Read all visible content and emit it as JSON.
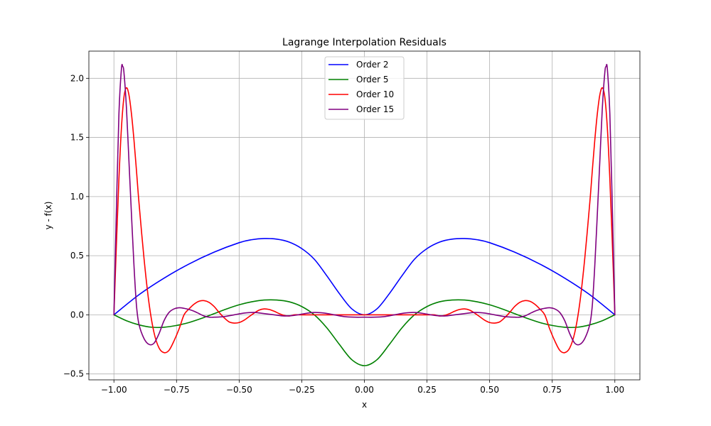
{
  "chart_data": {
    "type": "line",
    "title": "Lagrange Interpolation Residuals",
    "xlabel": "x",
    "ylabel": "y - f(x)",
    "xlim": [
      -1.1,
      1.1
    ],
    "ylim": [
      -0.55,
      2.23
    ],
    "xticks": [
      -1.0,
      -0.75,
      -0.5,
      -0.25,
      0.0,
      0.25,
      0.5,
      0.75,
      1.0
    ],
    "xtick_labels": [
      "−1.00",
      "−0.75",
      "−0.50",
      "−0.25",
      "0.00",
      "0.25",
      "0.50",
      "0.75",
      "1.00"
    ],
    "yticks": [
      -0.5,
      0.0,
      0.5,
      1.0,
      1.5,
      2.0
    ],
    "ytick_labels": [
      "−0.5",
      "0.0",
      "0.5",
      "1.0",
      "1.5",
      "2.0"
    ],
    "grid": true,
    "legend_position": "upper center",
    "series": [
      {
        "name": "Order 2",
        "color": "#0000ff",
        "x": [
          -1.0,
          -0.9,
          -0.8,
          -0.7,
          -0.6,
          -0.5,
          -0.45,
          -0.4,
          -0.35,
          -0.3,
          -0.25,
          -0.2,
          -0.15,
          -0.1,
          -0.05,
          0.0,
          0.05,
          0.1,
          0.15,
          0.2,
          0.25,
          0.3,
          0.35,
          0.4,
          0.45,
          0.5,
          0.6,
          0.7,
          0.8,
          0.9,
          1.0
        ],
        "y": [
          0.0,
          0.17,
          0.31,
          0.43,
          0.53,
          0.61,
          0.635,
          0.645,
          0.64,
          0.615,
          0.56,
          0.47,
          0.33,
          0.18,
          0.05,
          0.0,
          0.05,
          0.18,
          0.33,
          0.47,
          0.56,
          0.615,
          0.64,
          0.645,
          0.635,
          0.61,
          0.53,
          0.43,
          0.31,
          0.17,
          0.0
        ]
      },
      {
        "name": "Order 5",
        "color": "#008000",
        "x": [
          -1.0,
          -0.95,
          -0.9,
          -0.85,
          -0.8,
          -0.75,
          -0.7,
          -0.65,
          -0.6,
          -0.55,
          -0.5,
          -0.45,
          -0.4,
          -0.35,
          -0.3,
          -0.25,
          -0.2,
          -0.15,
          -0.1,
          -0.05,
          0.0,
          0.05,
          0.1,
          0.15,
          0.2,
          0.25,
          0.3,
          0.35,
          0.4,
          0.45,
          0.5,
          0.55,
          0.6,
          0.65,
          0.7,
          0.75,
          0.8,
          0.85,
          0.9,
          0.95,
          1.0
        ],
        "y": [
          0.0,
          -0.05,
          -0.085,
          -0.105,
          -0.105,
          -0.09,
          -0.065,
          -0.03,
          0.01,
          0.05,
          0.085,
          0.11,
          0.125,
          0.125,
          0.11,
          0.07,
          0.0,
          -0.11,
          -0.25,
          -0.38,
          -0.43,
          -0.38,
          -0.25,
          -0.11,
          0.0,
          0.07,
          0.11,
          0.125,
          0.125,
          0.11,
          0.085,
          0.05,
          0.01,
          -0.03,
          -0.065,
          -0.09,
          -0.105,
          -0.105,
          -0.085,
          -0.05,
          0.0
        ]
      },
      {
        "name": "Order 10",
        "color": "#ff0000",
        "x": [
          -1.0,
          -0.99,
          -0.98,
          -0.97,
          -0.96,
          -0.95,
          -0.94,
          -0.93,
          -0.92,
          -0.91,
          -0.9,
          -0.88,
          -0.86,
          -0.84,
          -0.82,
          -0.8,
          -0.78,
          -0.76,
          -0.74,
          -0.72,
          -0.7,
          -0.68,
          -0.66,
          -0.64,
          -0.62,
          -0.6,
          -0.58,
          -0.56,
          -0.54,
          -0.52,
          -0.5,
          -0.48,
          -0.46,
          -0.44,
          -0.42,
          -0.4,
          -0.38,
          -0.36,
          -0.34,
          -0.32,
          -0.3,
          -0.28,
          -0.26,
          -0.24,
          -0.22,
          -0.2,
          -0.18,
          -0.16,
          -0.14,
          -0.12,
          -0.1,
          -0.08,
          -0.06,
          -0.04,
          -0.02,
          0.0,
          0.02,
          0.04,
          0.06,
          0.08,
          0.1,
          0.12,
          0.14,
          0.16,
          0.18,
          0.2,
          0.22,
          0.24,
          0.26,
          0.28,
          0.3,
          0.32,
          0.34,
          0.36,
          0.38,
          0.4,
          0.42,
          0.44,
          0.46,
          0.48,
          0.5,
          0.52,
          0.54,
          0.56,
          0.58,
          0.6,
          0.62,
          0.64,
          0.66,
          0.68,
          0.7,
          0.72,
          0.74,
          0.76,
          0.78,
          0.8,
          0.82,
          0.84,
          0.86,
          0.88,
          0.9,
          0.91,
          0.92,
          0.93,
          0.94,
          0.95,
          0.96,
          0.97,
          0.98,
          0.99,
          1.0
        ],
        "y": [
          0.0,
          0.6,
          1.15,
          1.58,
          1.84,
          1.92,
          1.86,
          1.7,
          1.48,
          1.22,
          0.95,
          0.48,
          0.1,
          -0.15,
          -0.28,
          -0.32,
          -0.3,
          -0.22,
          -0.12,
          0.0,
          0.05,
          0.09,
          0.115,
          0.12,
          0.105,
          0.07,
          0.02,
          -0.025,
          -0.06,
          -0.07,
          -0.065,
          -0.045,
          -0.015,
          0.015,
          0.04,
          0.05,
          0.045,
          0.03,
          0.01,
          -0.005,
          -0.01,
          0.0,
          0.0,
          0.0,
          0.0,
          0.0,
          0.0,
          0.0,
          0.0,
          0.0,
          0.0,
          0.0,
          0.0,
          0.0,
          0.0,
          0.0,
          0.0,
          0.0,
          0.0,
          0.0,
          0.0,
          0.0,
          0.0,
          0.0,
          0.0,
          0.0,
          0.0,
          0.0,
          0.0,
          0.0,
          -0.01,
          -0.005,
          0.01,
          0.03,
          0.045,
          0.05,
          0.04,
          0.015,
          -0.015,
          -0.045,
          -0.065,
          -0.07,
          -0.06,
          -0.025,
          0.02,
          0.07,
          0.105,
          0.12,
          0.115,
          0.09,
          0.05,
          0.0,
          -0.12,
          -0.22,
          -0.3,
          -0.32,
          -0.28,
          -0.15,
          0.1,
          0.48,
          0.95,
          1.22,
          1.48,
          1.7,
          1.86,
          1.92,
          1.84,
          1.58,
          1.15,
          0.6,
          0.0
        ]
      },
      {
        "name": "Order 15",
        "color": "#800080",
        "x": [
          -1.0,
          -0.99,
          -0.98,
          -0.97,
          -0.965,
          -0.96,
          -0.95,
          -0.94,
          -0.93,
          -0.92,
          -0.91,
          -0.9,
          -0.88,
          -0.86,
          -0.84,
          -0.82,
          -0.8,
          -0.78,
          -0.76,
          -0.74,
          -0.72,
          -0.7,
          -0.68,
          -0.66,
          -0.64,
          -0.62,
          -0.6,
          -0.56,
          -0.52,
          -0.48,
          -0.44,
          -0.4,
          -0.36,
          -0.32,
          -0.28,
          -0.24,
          -0.2,
          -0.16,
          -0.12,
          -0.08,
          -0.04,
          0.0,
          0.04,
          0.08,
          0.12,
          0.16,
          0.2,
          0.24,
          0.28,
          0.32,
          0.36,
          0.4,
          0.44,
          0.48,
          0.52,
          0.56,
          0.6,
          0.62,
          0.64,
          0.66,
          0.68,
          0.7,
          0.72,
          0.74,
          0.76,
          0.78,
          0.8,
          0.82,
          0.84,
          0.86,
          0.88,
          0.9,
          0.91,
          0.92,
          0.93,
          0.94,
          0.95,
          0.96,
          0.965,
          0.97,
          0.98,
          0.99,
          1.0
        ],
        "y": [
          0.0,
          0.9,
          1.7,
          2.08,
          2.1,
          2.05,
          1.75,
          1.3,
          0.85,
          0.42,
          0.08,
          -0.08,
          -0.2,
          -0.25,
          -0.24,
          -0.16,
          -0.05,
          0.02,
          0.05,
          0.06,
          0.055,
          0.045,
          0.03,
          0.01,
          -0.01,
          -0.02,
          -0.02,
          -0.015,
          0.0,
          0.015,
          0.02,
          0.01,
          0.0,
          -0.01,
          -0.005,
          0.01,
          0.02,
          0.015,
          0.0,
          -0.015,
          -0.02,
          -0.02,
          -0.02,
          -0.015,
          0.0,
          0.015,
          0.02,
          0.01,
          -0.005,
          -0.01,
          0.0,
          0.01,
          0.02,
          0.015,
          0.0,
          -0.015,
          -0.02,
          -0.02,
          -0.01,
          0.01,
          0.03,
          0.045,
          0.055,
          0.06,
          0.05,
          0.02,
          -0.05,
          -0.16,
          -0.24,
          -0.25,
          -0.2,
          -0.08,
          0.08,
          0.42,
          0.85,
          1.3,
          1.75,
          2.05,
          2.1,
          2.08,
          1.7,
          0.9,
          0.0
        ]
      }
    ]
  }
}
